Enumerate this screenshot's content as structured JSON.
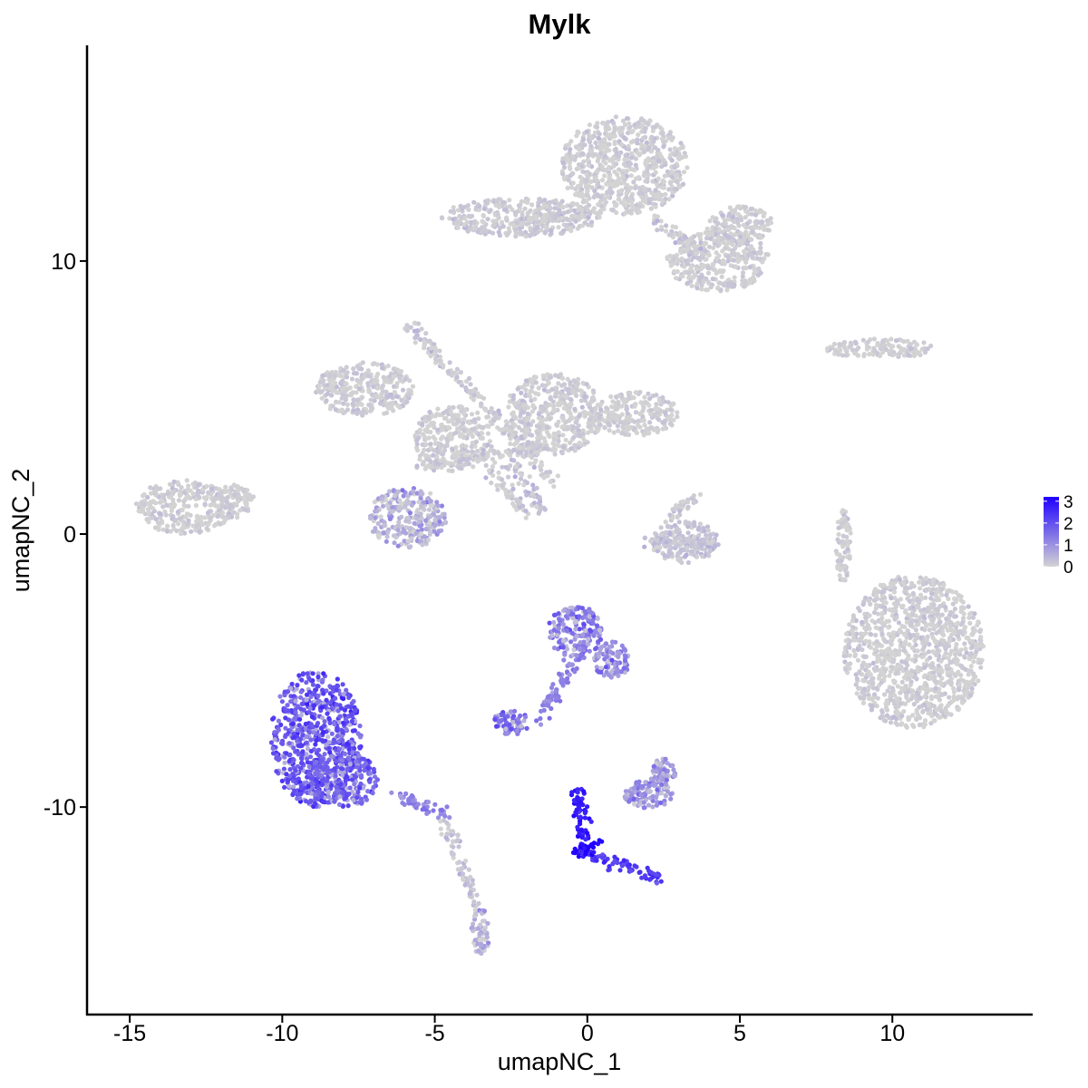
{
  "chart_data": {
    "type": "scatter",
    "title": "Mylk",
    "xlabel": "umapNC_1",
    "ylabel": "umapNC_2",
    "xlim": [
      -16.4,
      14.6
    ],
    "ylim": [
      -17.6,
      17.9
    ],
    "x_ticks": [
      -15,
      -10,
      -5,
      0,
      5,
      10
    ],
    "x_tick_labels": [
      "-15",
      "-10",
      "-5",
      "0",
      "5",
      "10"
    ],
    "y_ticks": [
      -10,
      0,
      10
    ],
    "y_tick_labels": [
      "-10",
      "0",
      "10"
    ],
    "grid": false,
    "legend": {
      "placement": "right",
      "type": "colorbar",
      "ticks": [
        3,
        2,
        1,
        0
      ],
      "tick_labels": [
        "3",
        "2",
        "1",
        "0"
      ],
      "range": [
        0,
        3.2
      ]
    },
    "color_scale": {
      "low": "#d3d3d3",
      "high": "#1f00ff"
    },
    "clusters": [
      {
        "cx": 1.2,
        "cy": 13.5,
        "rx": 2.1,
        "ry": 1.8,
        "expr": 0.05
      },
      {
        "cx": -2.2,
        "cy": 11.6,
        "rx": 2.6,
        "ry": 0.7,
        "expr": 0.1
      },
      {
        "cx": 4.3,
        "cy": 10.0,
        "rx": 1.7,
        "ry": 1.1,
        "expr": 0.05
      },
      {
        "cx": 5.0,
        "cy": 11.3,
        "rx": 1.1,
        "ry": 0.7,
        "expr": 0.05
      },
      {
        "cx": -7.3,
        "cy": 5.3,
        "rx": 1.6,
        "ry": 1.0,
        "expr": 0.05
      },
      {
        "cx": -4.4,
        "cy": 3.5,
        "rx": 1.3,
        "ry": 1.2,
        "expr": 0.05
      },
      {
        "cx": -1.1,
        "cy": 4.4,
        "rx": 1.6,
        "ry": 1.5,
        "expr": 0.05
      },
      {
        "cx": 1.6,
        "cy": 4.4,
        "rx": 1.4,
        "ry": 0.8,
        "expr": 0.05
      },
      {
        "cx": -5.9,
        "cy": 0.6,
        "rx": 1.3,
        "ry": 1.1,
        "expr": 0.55
      },
      {
        "cx": -13.2,
        "cy": 1.0,
        "rx": 1.6,
        "ry": 1.0,
        "expr": 0.05
      },
      {
        "cx": -11.6,
        "cy": 1.2,
        "rx": 0.7,
        "ry": 0.6,
        "expr": 0.05
      },
      {
        "cx": 3.2,
        "cy": -0.3,
        "rx": 1.1,
        "ry": 0.8,
        "expr": 0.25
      },
      {
        "cx": 9.6,
        "cy": 6.8,
        "rx": 1.8,
        "ry": 0.35,
        "expr": 0.05
      },
      {
        "cx": 8.4,
        "cy": -0.4,
        "rx": 0.25,
        "ry": 1.4,
        "expr": 0.05
      },
      {
        "cx": 10.7,
        "cy": -4.3,
        "rx": 2.3,
        "ry": 2.8,
        "expr": 0.05
      },
      {
        "cx": -0.4,
        "cy": -3.6,
        "rx": 0.9,
        "ry": 1.0,
        "expr": 1.3
      },
      {
        "cx": 0.8,
        "cy": -4.6,
        "rx": 0.6,
        "ry": 0.7,
        "expr": 1.1
      },
      {
        "cx": -8.9,
        "cy": -7.5,
        "rx": 1.5,
        "ry": 2.5,
        "expr": 1.95
      },
      {
        "cx": -8.0,
        "cy": -9.0,
        "rx": 1.2,
        "ry": 1.0,
        "expr": 1.8
      },
      {
        "cx": -2.5,
        "cy": -6.9,
        "rx": 0.6,
        "ry": 0.45,
        "expr": 1.4
      },
      {
        "cx": 2.0,
        "cy": -9.5,
        "rx": 0.8,
        "ry": 0.55,
        "expr": 1.0
      },
      {
        "cx": 2.5,
        "cy": -8.7,
        "rx": 0.4,
        "ry": 0.5,
        "expr": 1.0
      },
      {
        "cx": -3.5,
        "cy": -14.6,
        "rx": 0.3,
        "ry": 0.9,
        "expr": 0.5
      }
    ],
    "streams": [
      {
        "x0": -1.0,
        "y0": 1.8,
        "x1": -5.8,
        "y1": 7.6,
        "expr": 0.05
      },
      {
        "x0": -3.2,
        "y0": 2.5,
        "x1": -2.0,
        "y1": 0.8,
        "expr": 0.1
      },
      {
        "x0": -2.5,
        "y0": 2.6,
        "x1": -1.4,
        "y1": 0.8,
        "expr": 0.3
      },
      {
        "x0": -1.3,
        "y0": 3.2,
        "x1": -5.5,
        "y1": 2.5,
        "expr": 0.05
      },
      {
        "x0": -6.2,
        "y0": -9.5,
        "x1": -4.4,
        "y1": -10.4,
        "expr": 1.2
      },
      {
        "x0": -4.6,
        "y0": -10.6,
        "x1": -3.7,
        "y1": -13.6,
        "expr": 0.15
      },
      {
        "x0": -0.3,
        "y0": -9.3,
        "x1": 0.0,
        "y1": -11.7,
        "expr": 2.8
      },
      {
        "x0": 0.0,
        "y0": -11.7,
        "x1": 2.4,
        "y1": -12.6,
        "expr": 2.3
      },
      {
        "x0": -0.5,
        "y0": -11.7,
        "x1": 0.3,
        "y1": -11.4,
        "expr": 3.1
      },
      {
        "x0": -1.6,
        "y0": -6.8,
        "x1": -0.4,
        "y1": -4.6,
        "expr": 1.2
      },
      {
        "x0": 0.5,
        "y0": 11.9,
        "x1": -2.5,
        "y1": 11.4,
        "expr": 0.05
      },
      {
        "x0": 2.1,
        "y0": 11.6,
        "x1": 3.8,
        "y1": 10.3,
        "expr": 0.05
      },
      {
        "x0": 2.6,
        "y0": 0.5,
        "x1": 3.5,
        "y1": 1.5,
        "expr": 0.05
      },
      {
        "x0": 2.0,
        "y0": -0.3,
        "x1": 4.3,
        "y1": -0.3,
        "expr": 0.2
      }
    ]
  }
}
